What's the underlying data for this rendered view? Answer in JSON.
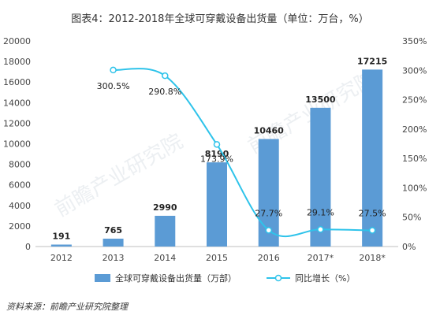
{
  "title": "图表4：2012-2018年全球可穿戴设备出货量（单位：万台，%）",
  "source": "资料来源：前瞻产业研究院整理",
  "watermark": "前瞻产业研究院",
  "colors": {
    "bar": "#5b9bd5",
    "line": "#2ec3ea",
    "axis": "#444444"
  },
  "chart_data": {
    "type": "bar",
    "categories": [
      "2012",
      "2013",
      "2014",
      "2015",
      "2016",
      "2017*",
      "2018*"
    ],
    "series": [
      {
        "name": "全球可穿戴设备出货量（万部）",
        "type": "bar",
        "axis": "left",
        "values": [
          191,
          765,
          2990,
          8190,
          10460,
          13500,
          17215
        ],
        "labels": [
          "191",
          "765",
          "2990",
          "8190",
          "10460",
          "13500",
          "17215"
        ]
      },
      {
        "name": "同比增长（%）",
        "type": "line",
        "axis": "right",
        "values": [
          null,
          300.5,
          290.8,
          173.9,
          27.7,
          29.1,
          27.5
        ],
        "labels": [
          "",
          "300.5%",
          "290.8%",
          "173.9%",
          "27.7%",
          "29.1%",
          "27.5%"
        ]
      }
    ],
    "ylim_left": [
      0,
      20000
    ],
    "yticks_left": [
      "0",
      "2000",
      "4000",
      "6000",
      "8000",
      "10000",
      "12000",
      "14000",
      "16000",
      "18000",
      "20000"
    ],
    "ylim_right": [
      0,
      350
    ],
    "yticks_right": [
      "0%",
      "50%",
      "100%",
      "150%",
      "200%",
      "250%",
      "300%",
      "350%"
    ],
    "legend_position": "bottom",
    "grid": false
  }
}
